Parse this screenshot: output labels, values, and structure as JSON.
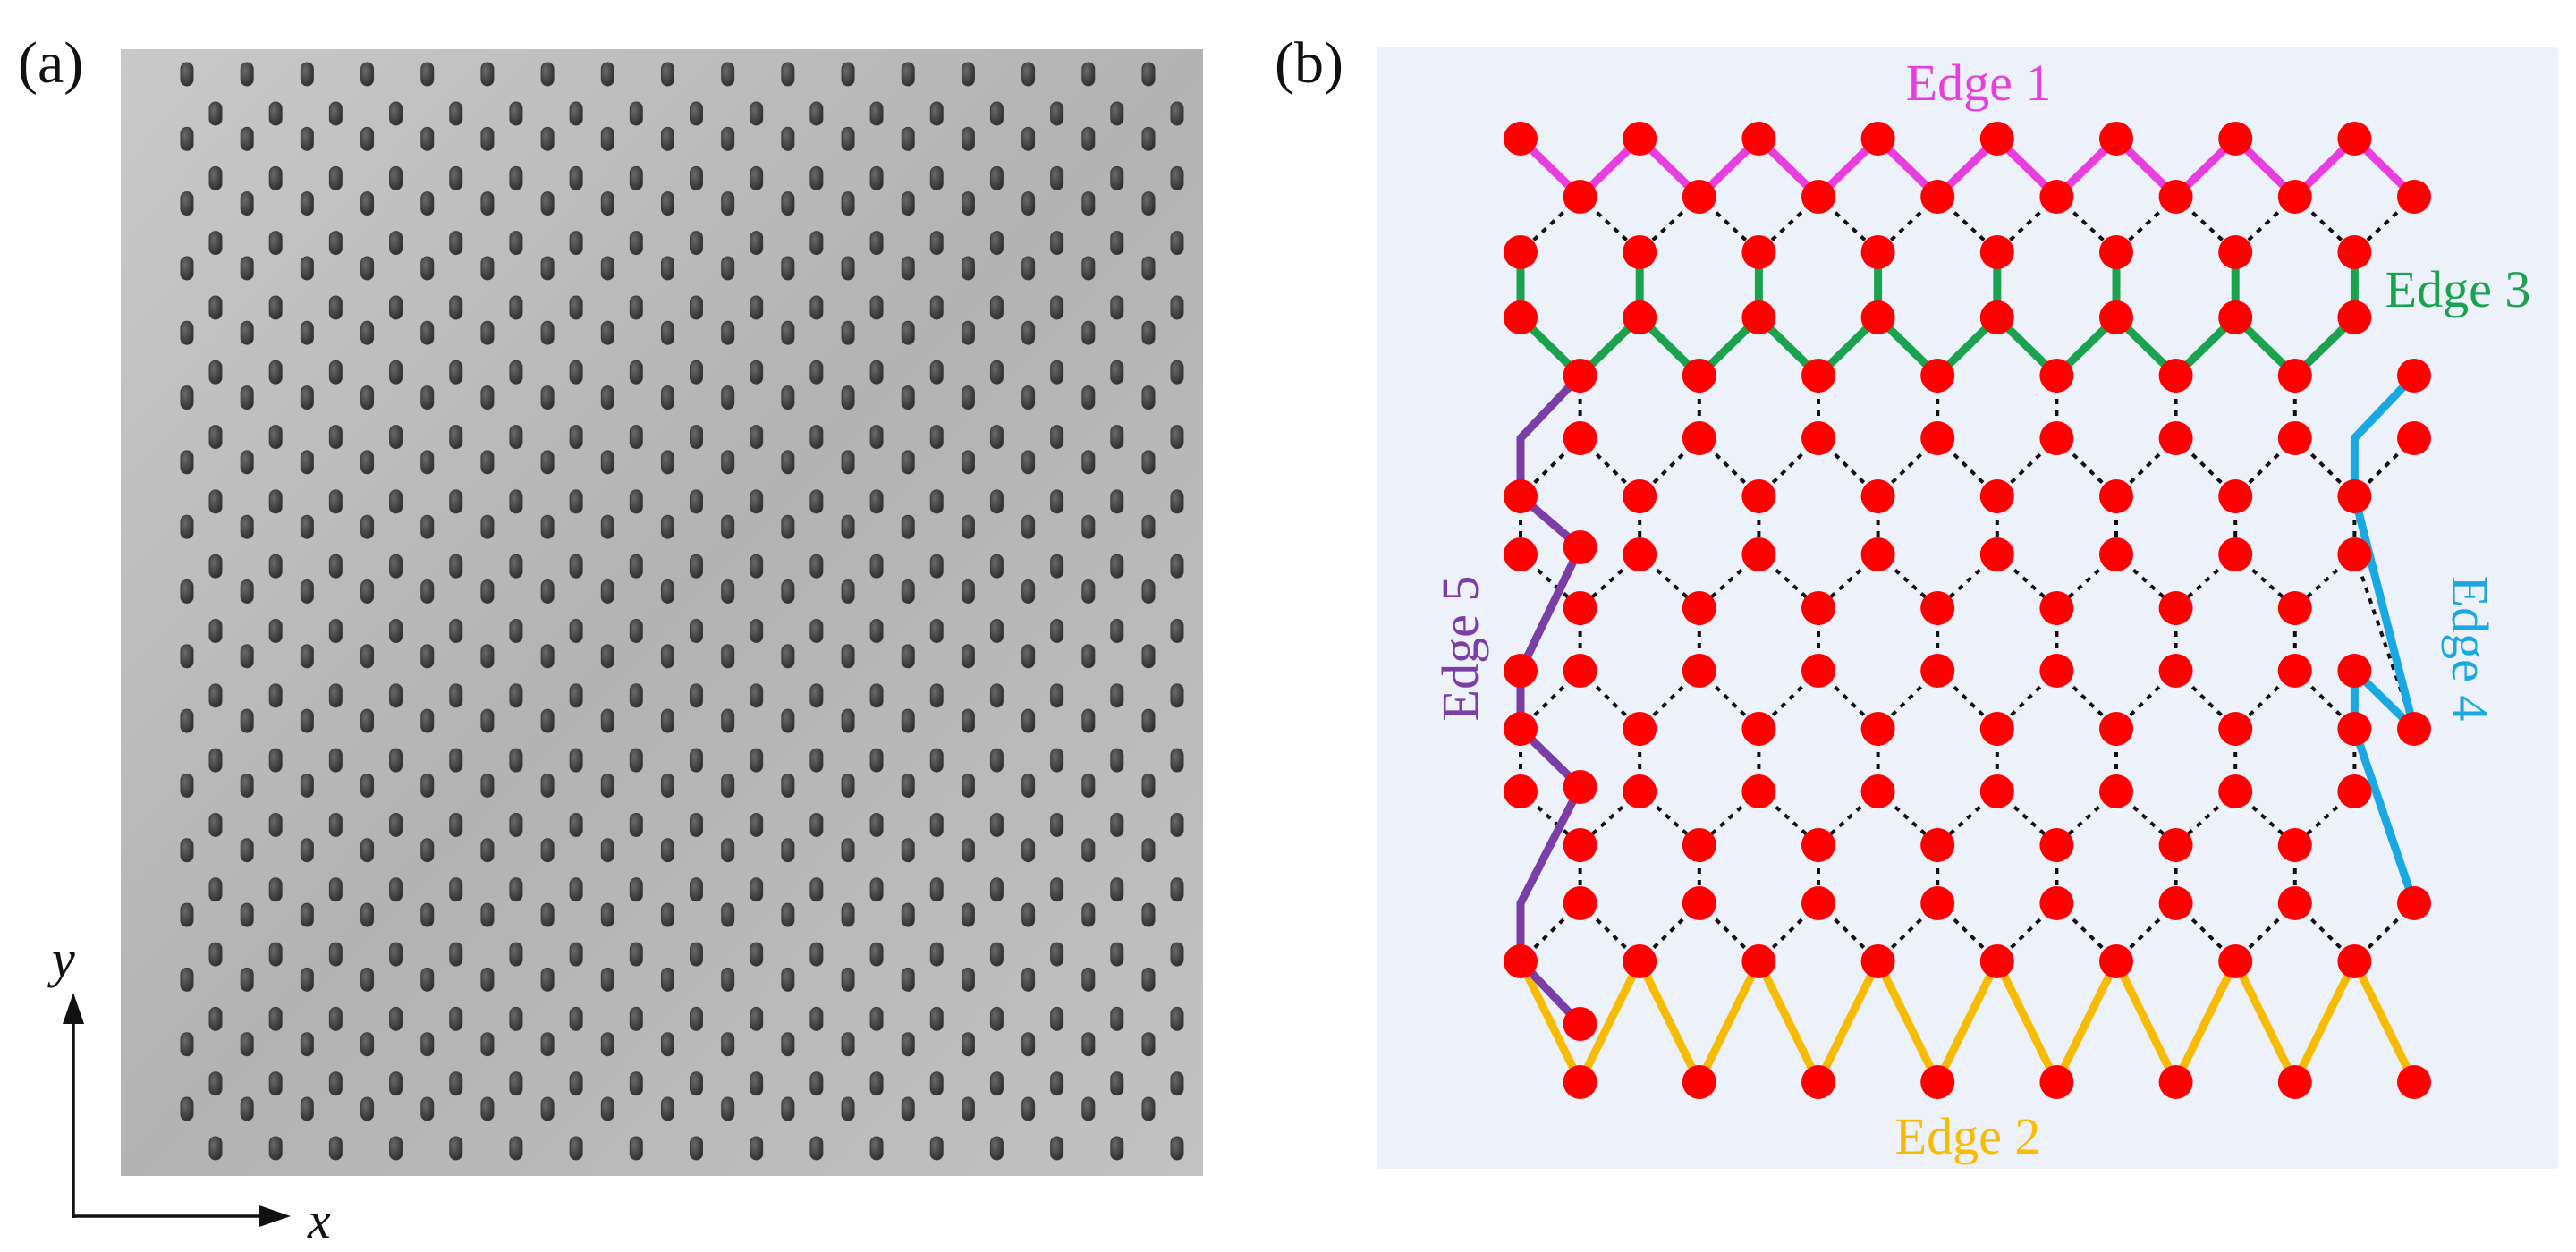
{
  "panel_a": {
    "label": "(a)",
    "photo": {
      "background": "#b9b9b9",
      "pillar_color": "#3b3b3b",
      "cols": 17,
      "rows": 17
    },
    "axes": {
      "x_label": "x",
      "y_label": "y"
    }
  },
  "panel_b": {
    "label": "(b)",
    "background": "#edf1fa",
    "node_color": "#ff0000",
    "bond_color": "#111111",
    "edges": [
      {
        "name": "edge-1",
        "label": "Edge 1",
        "color": "#e83ee0"
      },
      {
        "name": "edge-2",
        "label": "Edge 2",
        "color": "#f7bb00"
      },
      {
        "name": "edge-3",
        "label": "Edge 3",
        "color": "#1aa24f"
      },
      {
        "name": "edge-4",
        "label": "Edge 4",
        "color": "#1aa8e2"
      },
      {
        "name": "edge-5",
        "label": "Edge 5",
        "color": "#7b3ea6"
      }
    ]
  }
}
